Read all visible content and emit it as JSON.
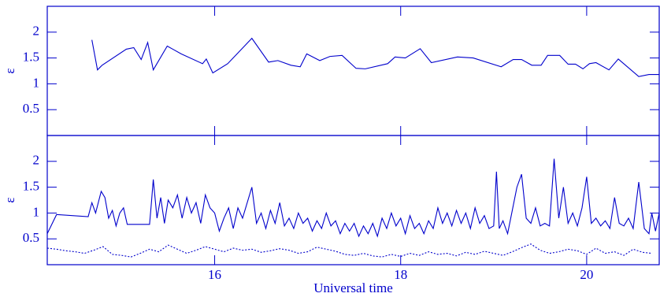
{
  "chart_data": [
    {
      "type": "line",
      "ylabel": "ε",
      "xlim": [
        14.2,
        20.78
      ],
      "ylim": [
        0,
        2.5
      ],
      "xticks": [
        16,
        18,
        20
      ],
      "show_xtick_labels": false,
      "yticks": [
        0.5,
        1,
        1.5,
        2
      ],
      "grid": false,
      "series": [
        {
          "color": "#0000cc",
          "dash": false,
          "x": [
            14.68,
            14.74,
            14.79,
            15.05,
            15.13,
            15.21,
            15.28,
            15.34,
            15.49,
            15.55,
            15.64,
            15.87,
            15.91,
            15.98,
            16.14,
            16.4,
            16.58,
            16.68,
            16.82,
            16.92,
            16.99,
            17.13,
            17.24,
            17.37,
            17.52,
            17.62,
            17.86,
            17.94,
            18.05,
            18.21,
            18.33,
            18.61,
            18.78,
            19.08,
            19.21,
            19.3,
            19.41,
            19.51,
            19.58,
            19.71,
            19.8,
            19.88,
            19.96,
            20.03,
            20.1,
            20.24,
            20.34,
            20.56,
            20.67,
            20.78
          ],
          "values": [
            1.85,
            1.27,
            1.36,
            1.67,
            1.7,
            1.47,
            1.8,
            1.27,
            1.73,
            1.67,
            1.58,
            1.39,
            1.48,
            1.21,
            1.39,
            1.88,
            1.42,
            1.45,
            1.36,
            1.33,
            1.58,
            1.45,
            1.53,
            1.55,
            1.3,
            1.29,
            1.39,
            1.52,
            1.5,
            1.68,
            1.41,
            1.52,
            1.5,
            1.33,
            1.47,
            1.47,
            1.36,
            1.36,
            1.55,
            1.55,
            1.38,
            1.38,
            1.29,
            1.39,
            1.41,
            1.27,
            1.48,
            1.14,
            1.18,
            1.18
          ]
        }
      ]
    },
    {
      "type": "line",
      "ylabel": "ε",
      "xlabel": "Universal time",
      "xlim": [
        14.2,
        20.78
      ],
      "ylim": [
        0,
        2.5
      ],
      "xticks": [
        16,
        18,
        20
      ],
      "show_xtick_labels": true,
      "yticks": [
        0.5,
        1,
        1.5,
        2
      ],
      "grid": false,
      "series": [
        {
          "color": "#0000cc",
          "dash": false,
          "x": [
            14.2,
            14.3,
            14.64,
            14.68,
            14.72,
            14.78,
            14.82,
            14.86,
            14.9,
            14.94,
            14.98,
            15.02,
            15.06,
            15.3,
            15.32,
            15.34,
            15.38,
            15.42,
            15.46,
            15.5,
            15.55,
            15.6,
            15.65,
            15.7,
            15.75,
            15.8,
            15.85,
            15.9,
            15.95,
            16.0,
            16.05,
            16.1,
            16.15,
            16.2,
            16.25,
            16.3,
            16.4,
            16.45,
            16.5,
            16.55,
            16.6,
            16.65,
            16.7,
            16.75,
            16.8,
            16.85,
            16.9,
            16.95,
            17.0,
            17.05,
            17.1,
            17.15,
            17.2,
            17.25,
            17.3,
            17.35,
            17.4,
            17.45,
            17.5,
            17.55,
            17.6,
            17.65,
            17.7,
            17.75,
            17.8,
            17.85,
            17.9,
            17.95,
            18.0,
            18.05,
            18.1,
            18.15,
            18.2,
            18.25,
            18.3,
            18.35,
            18.4,
            18.45,
            18.5,
            18.55,
            18.6,
            18.65,
            18.7,
            18.75,
            18.8,
            18.85,
            18.9,
            18.95,
            19.0,
            19.03,
            19.06,
            19.1,
            19.15,
            19.2,
            19.25,
            19.3,
            19.35,
            19.4,
            19.45,
            19.5,
            19.55,
            19.6,
            19.65,
            19.7,
            19.75,
            19.8,
            19.85,
            19.9,
            19.95,
            20.0,
            20.05,
            20.1,
            20.15,
            20.2,
            20.25,
            20.3,
            20.35,
            20.4,
            20.45,
            20.5,
            20.56,
            20.62,
            20.67,
            20.7,
            20.74,
            20.78
          ],
          "values": [
            0.6,
            0.97,
            0.93,
            1.2,
            1.0,
            1.42,
            1.3,
            0.9,
            1.05,
            0.75,
            1.0,
            1.1,
            0.78,
            0.78,
            1.2,
            1.65,
            0.9,
            1.3,
            0.8,
            1.25,
            1.1,
            1.35,
            0.9,
            1.3,
            1.0,
            1.2,
            0.8,
            1.35,
            1.1,
            1.0,
            0.65,
            0.9,
            1.1,
            0.7,
            1.1,
            0.9,
            1.5,
            0.8,
            1.0,
            0.7,
            1.05,
            0.8,
            1.2,
            0.75,
            0.9,
            0.7,
            1.0,
            0.8,
            0.9,
            0.65,
            0.85,
            0.7,
            1.0,
            0.75,
            0.85,
            0.6,
            0.8,
            0.65,
            0.8,
            0.55,
            0.75,
            0.6,
            0.8,
            0.55,
            0.9,
            0.7,
            1.0,
            0.75,
            0.9,
            0.6,
            0.95,
            0.7,
            0.8,
            0.6,
            0.85,
            0.7,
            1.1,
            0.8,
            1.0,
            0.75,
            1.05,
            0.8,
            1.0,
            0.7,
            1.1,
            0.8,
            0.95,
            0.7,
            0.75,
            1.8,
            0.7,
            0.85,
            0.6,
            1.05,
            1.5,
            1.75,
            0.9,
            0.8,
            1.1,
            0.75,
            0.8,
            0.75,
            2.05,
            0.9,
            1.5,
            0.8,
            1.0,
            0.75,
            1.1,
            1.7,
            0.8,
            0.9,
            0.75,
            0.85,
            0.7,
            1.3,
            0.8,
            0.75,
            0.9,
            0.7,
            1.6,
            0.7,
            0.6,
            1.0,
            0.65,
            1.0
          ]
        },
        {
          "color": "#0000cc",
          "dash": true,
          "x": [
            14.2,
            14.3,
            14.4,
            14.5,
            14.6,
            14.7,
            14.8,
            14.9,
            15.0,
            15.1,
            15.2,
            15.3,
            15.4,
            15.5,
            15.6,
            15.7,
            15.8,
            15.9,
            16.0,
            16.1,
            16.2,
            16.3,
            16.4,
            16.5,
            16.6,
            16.7,
            16.8,
            16.9,
            17.0,
            17.1,
            17.2,
            17.3,
            17.4,
            17.5,
            17.6,
            17.7,
            17.8,
            17.9,
            18.0,
            18.1,
            18.2,
            18.3,
            18.4,
            18.5,
            18.6,
            18.7,
            18.8,
            18.9,
            19.0,
            19.1,
            19.2,
            19.3,
            19.4,
            19.5,
            19.6,
            19.7,
            19.8,
            19.9,
            20.0,
            20.1,
            20.2,
            20.3,
            20.4,
            20.5,
            20.6,
            20.7
          ],
          "values": [
            0.32,
            0.3,
            0.27,
            0.25,
            0.22,
            0.28,
            0.35,
            0.2,
            0.18,
            0.15,
            0.22,
            0.3,
            0.25,
            0.38,
            0.3,
            0.22,
            0.28,
            0.35,
            0.3,
            0.25,
            0.32,
            0.28,
            0.3,
            0.24,
            0.27,
            0.31,
            0.28,
            0.22,
            0.25,
            0.34,
            0.3,
            0.26,
            0.2,
            0.18,
            0.22,
            0.17,
            0.15,
            0.2,
            0.16,
            0.22,
            0.18,
            0.25,
            0.2,
            0.22,
            0.17,
            0.24,
            0.2,
            0.26,
            0.22,
            0.18,
            0.25,
            0.33,
            0.4,
            0.28,
            0.22,
            0.25,
            0.3,
            0.27,
            0.2,
            0.32,
            0.22,
            0.25,
            0.18,
            0.3,
            0.24,
            0.22
          ]
        }
      ]
    }
  ]
}
